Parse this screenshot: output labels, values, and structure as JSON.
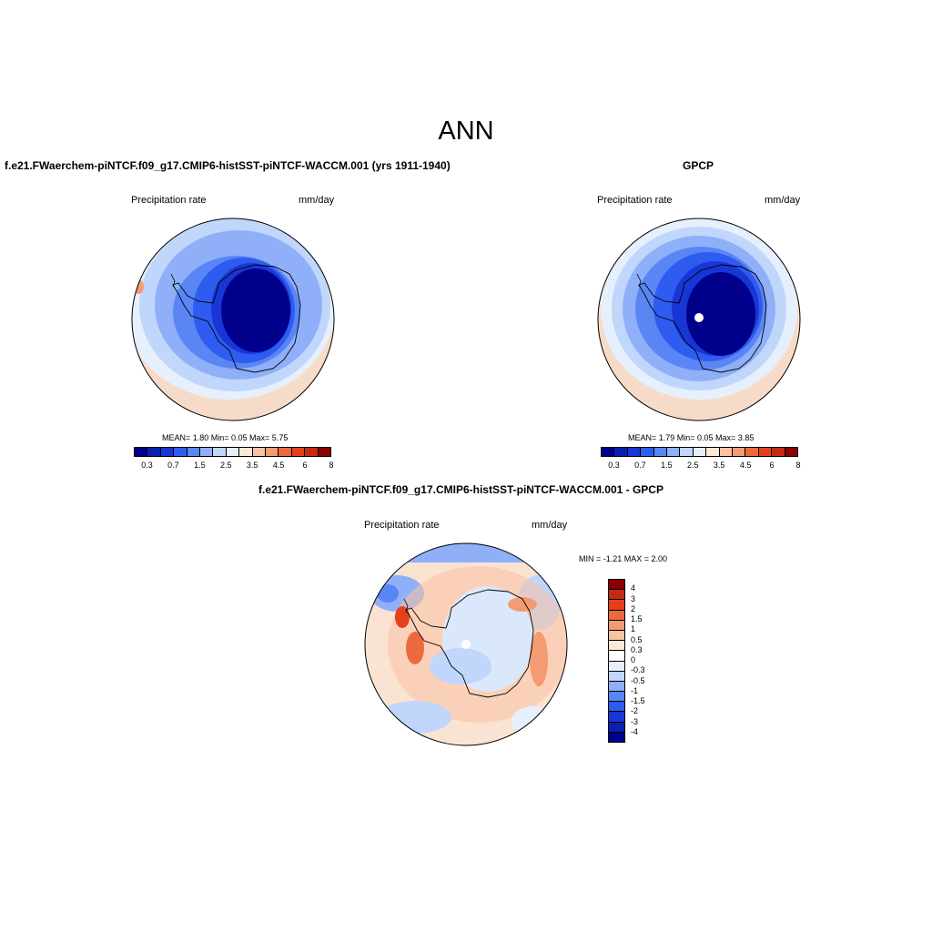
{
  "title": "ANN",
  "panels": {
    "model": {
      "title": "f.e21.FWaerchem-piNTCF.f09_g17.CMIP6-histSST-piNTCF-WACCM.001 (yrs 1911-1940)",
      "variable": "Precipitation rate",
      "units": "mm/day",
      "stats": "MEAN=   1.80  Min=   0.05  Max=   5.75"
    },
    "obs": {
      "title": "GPCP",
      "variable": "Precipitation rate",
      "units": "mm/day",
      "stats": "MEAN=   1.79  Min=   0.05  Max=   3.85"
    },
    "diff": {
      "title": "f.e21.FWaerchem-piNTCF.f09_g17.CMIP6-histSST-piNTCF-WACCM.001 - GPCP",
      "variable": "Precipitation rate",
      "units": "mm/day",
      "stats": "MIN =  -1.21 MAX =   2.00"
    }
  },
  "colorbar_abs": {
    "colors": [
      "#00008b",
      "#0a1fb0",
      "#1836d6",
      "#2f5cf0",
      "#5a86f5",
      "#8fb0f8",
      "#c0d6fb",
      "#e6f0fd",
      "#fde8d8",
      "#f9c3a3",
      "#f39b72",
      "#ec6a3e",
      "#e4411b",
      "#c42a10",
      "#8b0000"
    ],
    "labels": [
      "0.3",
      "0.7",
      "1.5",
      "2.5",
      "3.5",
      "4.5",
      "6",
      "8"
    ]
  },
  "colorbar_diff": {
    "colors": [
      "#8b0000",
      "#c42a10",
      "#e4411b",
      "#ec6a3e",
      "#f39b72",
      "#f9c3a3",
      "#fde8d8",
      "#ffffff",
      "#e6f0fd",
      "#c0d6fb",
      "#8fb0f8",
      "#5a86f5",
      "#2f5cf0",
      "#1836d6",
      "#0a1fb0",
      "#00008b"
    ],
    "labels": [
      "4",
      "3",
      "2",
      "1.5",
      "1",
      "0.5",
      "0.3",
      "0",
      "-0.3",
      "-0.5",
      "-1",
      "-1.5",
      "-2",
      "-3",
      "-4"
    ]
  },
  "colors": {
    "ocean_far": "#f6dcc8",
    "ocean_mid": "#aac6f8",
    "coast_ring": "#5d86f0",
    "ice_sheet": "#00008b",
    "diff_base": "#fbe3d3",
    "diff_interior": "#dbe8fc"
  }
}
